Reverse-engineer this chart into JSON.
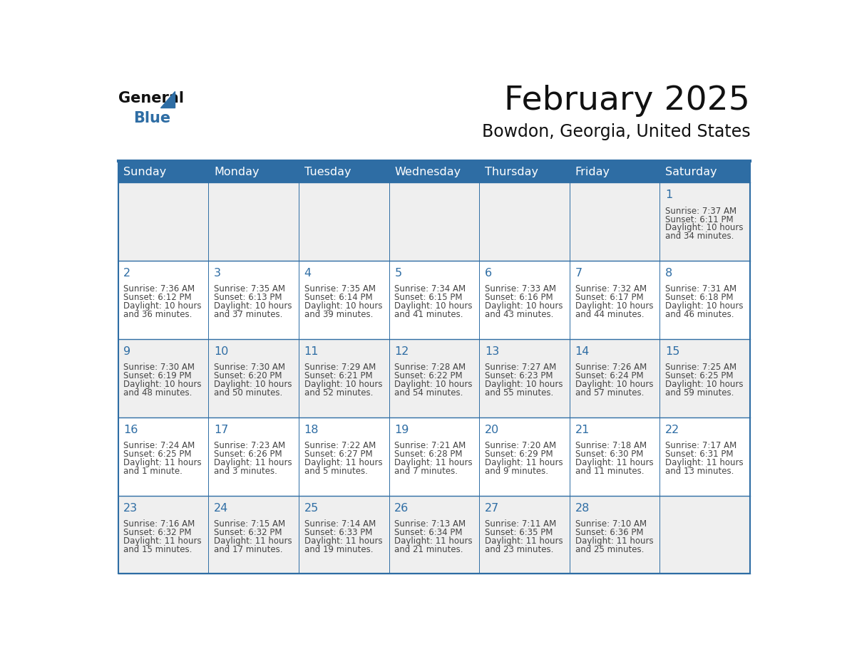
{
  "title": "February 2025",
  "subtitle": "Bowdon, Georgia, United States",
  "header_bg": "#2E6DA4",
  "header_text_color": "#FFFFFF",
  "row_colors": [
    "#EFEFEF",
    "#FFFFFF",
    "#EFEFEF",
    "#FFFFFF",
    "#EFEFEF"
  ],
  "border_color": "#2E6DA4",
  "text_color": "#444444",
  "day_number_color": "#2E6DA4",
  "weekdays": [
    "Sunday",
    "Monday",
    "Tuesday",
    "Wednesday",
    "Thursday",
    "Friday",
    "Saturday"
  ],
  "days": [
    {
      "day": 1,
      "col": 6,
      "row": 0,
      "sunrise": "7:37 AM",
      "sunset": "6:11 PM",
      "daylight_line1": "Daylight: 10 hours",
      "daylight_line2": "and 34 minutes."
    },
    {
      "day": 2,
      "col": 0,
      "row": 1,
      "sunrise": "7:36 AM",
      "sunset": "6:12 PM",
      "daylight_line1": "Daylight: 10 hours",
      "daylight_line2": "and 36 minutes."
    },
    {
      "day": 3,
      "col": 1,
      "row": 1,
      "sunrise": "7:35 AM",
      "sunset": "6:13 PM",
      "daylight_line1": "Daylight: 10 hours",
      "daylight_line2": "and 37 minutes."
    },
    {
      "day": 4,
      "col": 2,
      "row": 1,
      "sunrise": "7:35 AM",
      "sunset": "6:14 PM",
      "daylight_line1": "Daylight: 10 hours",
      "daylight_line2": "and 39 minutes."
    },
    {
      "day": 5,
      "col": 3,
      "row": 1,
      "sunrise": "7:34 AM",
      "sunset": "6:15 PM",
      "daylight_line1": "Daylight: 10 hours",
      "daylight_line2": "and 41 minutes."
    },
    {
      "day": 6,
      "col": 4,
      "row": 1,
      "sunrise": "7:33 AM",
      "sunset": "6:16 PM",
      "daylight_line1": "Daylight: 10 hours",
      "daylight_line2": "and 43 minutes."
    },
    {
      "day": 7,
      "col": 5,
      "row": 1,
      "sunrise": "7:32 AM",
      "sunset": "6:17 PM",
      "daylight_line1": "Daylight: 10 hours",
      "daylight_line2": "and 44 minutes."
    },
    {
      "day": 8,
      "col": 6,
      "row": 1,
      "sunrise": "7:31 AM",
      "sunset": "6:18 PM",
      "daylight_line1": "Daylight: 10 hours",
      "daylight_line2": "and 46 minutes."
    },
    {
      "day": 9,
      "col": 0,
      "row": 2,
      "sunrise": "7:30 AM",
      "sunset": "6:19 PM",
      "daylight_line1": "Daylight: 10 hours",
      "daylight_line2": "and 48 minutes."
    },
    {
      "day": 10,
      "col": 1,
      "row": 2,
      "sunrise": "7:30 AM",
      "sunset": "6:20 PM",
      "daylight_line1": "Daylight: 10 hours",
      "daylight_line2": "and 50 minutes."
    },
    {
      "day": 11,
      "col": 2,
      "row": 2,
      "sunrise": "7:29 AM",
      "sunset": "6:21 PM",
      "daylight_line1": "Daylight: 10 hours",
      "daylight_line2": "and 52 minutes."
    },
    {
      "day": 12,
      "col": 3,
      "row": 2,
      "sunrise": "7:28 AM",
      "sunset": "6:22 PM",
      "daylight_line1": "Daylight: 10 hours",
      "daylight_line2": "and 54 minutes."
    },
    {
      "day": 13,
      "col": 4,
      "row": 2,
      "sunrise": "7:27 AM",
      "sunset": "6:23 PM",
      "daylight_line1": "Daylight: 10 hours",
      "daylight_line2": "and 55 minutes."
    },
    {
      "day": 14,
      "col": 5,
      "row": 2,
      "sunrise": "7:26 AM",
      "sunset": "6:24 PM",
      "daylight_line1": "Daylight: 10 hours",
      "daylight_line2": "and 57 minutes."
    },
    {
      "day": 15,
      "col": 6,
      "row": 2,
      "sunrise": "7:25 AM",
      "sunset": "6:25 PM",
      "daylight_line1": "Daylight: 10 hours",
      "daylight_line2": "and 59 minutes."
    },
    {
      "day": 16,
      "col": 0,
      "row": 3,
      "sunrise": "7:24 AM",
      "sunset": "6:25 PM",
      "daylight_line1": "Daylight: 11 hours",
      "daylight_line2": "and 1 minute."
    },
    {
      "day": 17,
      "col": 1,
      "row": 3,
      "sunrise": "7:23 AM",
      "sunset": "6:26 PM",
      "daylight_line1": "Daylight: 11 hours",
      "daylight_line2": "and 3 minutes."
    },
    {
      "day": 18,
      "col": 2,
      "row": 3,
      "sunrise": "7:22 AM",
      "sunset": "6:27 PM",
      "daylight_line1": "Daylight: 11 hours",
      "daylight_line2": "and 5 minutes."
    },
    {
      "day": 19,
      "col": 3,
      "row": 3,
      "sunrise": "7:21 AM",
      "sunset": "6:28 PM",
      "daylight_line1": "Daylight: 11 hours",
      "daylight_line2": "and 7 minutes."
    },
    {
      "day": 20,
      "col": 4,
      "row": 3,
      "sunrise": "7:20 AM",
      "sunset": "6:29 PM",
      "daylight_line1": "Daylight: 11 hours",
      "daylight_line2": "and 9 minutes."
    },
    {
      "day": 21,
      "col": 5,
      "row": 3,
      "sunrise": "7:18 AM",
      "sunset": "6:30 PM",
      "daylight_line1": "Daylight: 11 hours",
      "daylight_line2": "and 11 minutes."
    },
    {
      "day": 22,
      "col": 6,
      "row": 3,
      "sunrise": "7:17 AM",
      "sunset": "6:31 PM",
      "daylight_line1": "Daylight: 11 hours",
      "daylight_line2": "and 13 minutes."
    },
    {
      "day": 23,
      "col": 0,
      "row": 4,
      "sunrise": "7:16 AM",
      "sunset": "6:32 PM",
      "daylight_line1": "Daylight: 11 hours",
      "daylight_line2": "and 15 minutes."
    },
    {
      "day": 24,
      "col": 1,
      "row": 4,
      "sunrise": "7:15 AM",
      "sunset": "6:32 PM",
      "daylight_line1": "Daylight: 11 hours",
      "daylight_line2": "and 17 minutes."
    },
    {
      "day": 25,
      "col": 2,
      "row": 4,
      "sunrise": "7:14 AM",
      "sunset": "6:33 PM",
      "daylight_line1": "Daylight: 11 hours",
      "daylight_line2": "and 19 minutes."
    },
    {
      "day": 26,
      "col": 3,
      "row": 4,
      "sunrise": "7:13 AM",
      "sunset": "6:34 PM",
      "daylight_line1": "Daylight: 11 hours",
      "daylight_line2": "and 21 minutes."
    },
    {
      "day": 27,
      "col": 4,
      "row": 4,
      "sunrise": "7:11 AM",
      "sunset": "6:35 PM",
      "daylight_line1": "Daylight: 11 hours",
      "daylight_line2": "and 23 minutes."
    },
    {
      "day": 28,
      "col": 5,
      "row": 4,
      "sunrise": "7:10 AM",
      "sunset": "6:36 PM",
      "daylight_line1": "Daylight: 11 hours",
      "daylight_line2": "and 25 minutes."
    }
  ],
  "num_rows": 5,
  "num_cols": 7,
  "fig_width": 11.88,
  "fig_height": 9.18,
  "dpi": 100
}
